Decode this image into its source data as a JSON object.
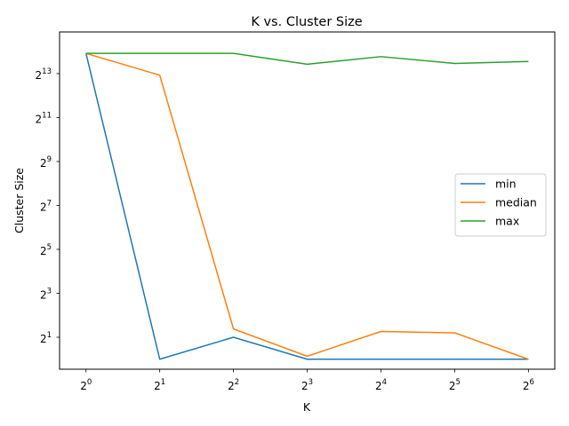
{
  "chart_data": {
    "type": "line",
    "title": "K vs. Cluster Size",
    "xlabel": "K",
    "ylabel": "Cluster Size",
    "x_scale": "log2",
    "y_scale": "log2",
    "x": [
      1,
      2,
      4,
      8,
      16,
      32,
      64
    ],
    "x_ticks": [
      {
        "value": 1,
        "base": "2",
        "exp": "0"
      },
      {
        "value": 2,
        "base": "2",
        "exp": "1"
      },
      {
        "value": 4,
        "base": "2",
        "exp": "2"
      },
      {
        "value": 8,
        "base": "2",
        "exp": "3"
      },
      {
        "value": 16,
        "base": "2",
        "exp": "4"
      },
      {
        "value": 32,
        "base": "2",
        "exp": "5"
      },
      {
        "value": 64,
        "base": "2",
        "exp": "6"
      }
    ],
    "y_ticks": [
      {
        "value": 2,
        "base": "2",
        "exp": "1"
      },
      {
        "value": 8,
        "base": "2",
        "exp": "3"
      },
      {
        "value": 32,
        "base": "2",
        "exp": "5"
      },
      {
        "value": 128,
        "base": "2",
        "exp": "7"
      },
      {
        "value": 512,
        "base": "2",
        "exp": "9"
      },
      {
        "value": 2048,
        "base": "2",
        "exp": "11"
      },
      {
        "value": 8192,
        "base": "2",
        "exp": "13"
      }
    ],
    "xlim": [
      0.78,
      82
    ],
    "ylim": [
      0.73,
      30500
    ],
    "grid": false,
    "legend_position": "center-right",
    "series": [
      {
        "name": "min",
        "color": "#1f77b4",
        "values": [
          15500,
          1,
          2,
          1,
          1,
          1,
          1
        ]
      },
      {
        "name": "median",
        "color": "#ff7f0e",
        "values": [
          15500,
          7800,
          2.6,
          1.1,
          2.4,
          2.3,
          1
        ]
      },
      {
        "name": "max",
        "color": "#2ca02c",
        "values": [
          15500,
          15500,
          15500,
          11000,
          14000,
          11300,
          12000
        ]
      }
    ]
  }
}
